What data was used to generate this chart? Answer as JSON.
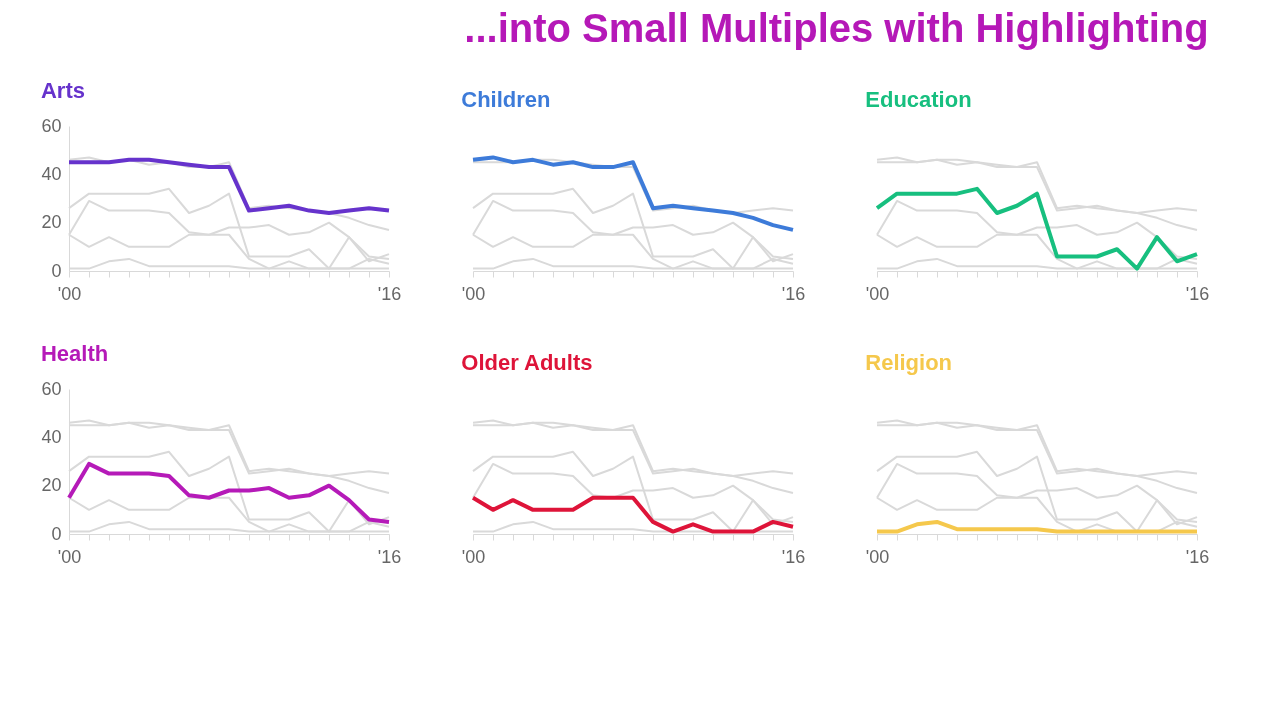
{
  "chart_data": [
    {
      "type": "line",
      "title": "Arts",
      "annotations": [
        "...into Small Multiples with Highlighting"
      ],
      "x": [
        2000,
        2001,
        2002,
        2003,
        2004,
        2005,
        2006,
        2007,
        2008,
        2009,
        2010,
        2011,
        2012,
        2013,
        2014,
        2015,
        2016
      ],
      "xlim": [
        2000,
        2016
      ],
      "xticks": [
        {
          "value": 2000,
          "label": "'00"
        },
        {
          "value": 2001,
          "label": null
        },
        {
          "value": 2002,
          "label": null
        },
        {
          "value": 2003,
          "label": null
        },
        {
          "value": 2004,
          "label": null
        },
        {
          "value": 2005,
          "label": null
        },
        {
          "value": 2006,
          "label": null
        },
        {
          "value": 2007,
          "label": null
        },
        {
          "value": 2008,
          "label": null
        },
        {
          "value": 2009,
          "label": null
        },
        {
          "value": 2010,
          "label": null
        },
        {
          "value": 2011,
          "label": null
        },
        {
          "value": 2012,
          "label": null
        },
        {
          "value": 2013,
          "label": null
        },
        {
          "value": 2014,
          "label": null
        },
        {
          "value": 2015,
          "label": null
        },
        {
          "value": 2016,
          "label": "'16"
        }
      ],
      "ylim": [
        0,
        60
      ],
      "yticks": [
        0,
        20,
        40,
        60
      ],
      "grid": false,
      "legend": false,
      "marker": "none",
      "line_style": "solid",
      "series": [
        {
          "color": "#d9d9d9",
          "values": [
            46,
            47,
            45,
            46,
            44,
            45,
            43,
            43,
            45,
            26,
            27,
            26,
            25,
            24,
            22,
            19,
            17
          ]
        },
        {
          "color": "#d9d9d9",
          "values": [
            26,
            32,
            32,
            32,
            32,
            34,
            24,
            27,
            32,
            6,
            6,
            6,
            9,
            1,
            14,
            4,
            7
          ]
        },
        {
          "color": "#d9d9d9",
          "values": [
            15,
            29,
            25,
            25,
            25,
            24,
            16,
            15,
            18,
            18,
            19,
            15,
            16,
            20,
            14,
            6,
            5
          ]
        },
        {
          "color": "#d9d9d9",
          "values": [
            15,
            10,
            14,
            10,
            10,
            10,
            15,
            15,
            15,
            5,
            1,
            4,
            1,
            1,
            1,
            5,
            3
          ]
        },
        {
          "color": "#d9d9d9",
          "values": [
            1,
            1,
            4,
            5,
            2,
            2,
            2,
            2,
            2,
            1,
            1,
            1,
            1,
            1,
            1,
            1,
            1
          ]
        },
        {
          "color": "#6633cc",
          "values": [
            45,
            45,
            45,
            46,
            46,
            45,
            44,
            43,
            43,
            25,
            26,
            27,
            25,
            24,
            25,
            26,
            25
          ]
        }
      ]
    },
    {
      "type": "line",
      "title": "Children",
      "tick_labels": "x",
      "x": [
        2000,
        2001,
        2002,
        2003,
        2004,
        2005,
        2006,
        2007,
        2008,
        2009,
        2010,
        2011,
        2012,
        2013,
        2014,
        2015,
        2016
      ],
      "xlim": [
        2000,
        2016
      ],
      "xticks": [
        {
          "value": 2000,
          "label": "'00"
        },
        {
          "value": 2001,
          "label": null
        },
        {
          "value": 2002,
          "label": null
        },
        {
          "value": 2003,
          "label": null
        },
        {
          "value": 2004,
          "label": null
        },
        {
          "value": 2005,
          "label": null
        },
        {
          "value": 2006,
          "label": null
        },
        {
          "value": 2007,
          "label": null
        },
        {
          "value": 2008,
          "label": null
        },
        {
          "value": 2009,
          "label": null
        },
        {
          "value": 2010,
          "label": null
        },
        {
          "value": 2011,
          "label": null
        },
        {
          "value": 2012,
          "label": null
        },
        {
          "value": 2013,
          "label": null
        },
        {
          "value": 2014,
          "label": null
        },
        {
          "value": 2015,
          "label": null
        },
        {
          "value": 2016,
          "label": "'16"
        }
      ],
      "ylim": [
        0,
        60
      ],
      "yticks": [
        0,
        20,
        40,
        60
      ],
      "grid": false,
      "legend": false,
      "marker": "none",
      "line_style": "solid",
      "series": [
        {
          "color": "#d9d9d9",
          "values": [
            45,
            45,
            45,
            46,
            46,
            45,
            44,
            43,
            43,
            25,
            26,
            27,
            25,
            24,
            25,
            26,
            25
          ]
        },
        {
          "color": "#d9d9d9",
          "values": [
            26,
            32,
            32,
            32,
            32,
            34,
            24,
            27,
            32,
            6,
            6,
            6,
            9,
            1,
            14,
            4,
            7
          ]
        },
        {
          "color": "#d9d9d9",
          "values": [
            15,
            29,
            25,
            25,
            25,
            24,
            16,
            15,
            18,
            18,
            19,
            15,
            16,
            20,
            14,
            6,
            5
          ]
        },
        {
          "color": "#d9d9d9",
          "values": [
            15,
            10,
            14,
            10,
            10,
            10,
            15,
            15,
            15,
            5,
            1,
            4,
            1,
            1,
            1,
            5,
            3
          ]
        },
        {
          "color": "#d9d9d9",
          "values": [
            1,
            1,
            4,
            5,
            2,
            2,
            2,
            2,
            2,
            1,
            1,
            1,
            1,
            1,
            1,
            1,
            1
          ]
        },
        {
          "color": "#3d7bd9",
          "values": [
            46,
            47,
            45,
            46,
            44,
            45,
            43,
            43,
            45,
            26,
            27,
            26,
            25,
            24,
            22,
            19,
            17
          ]
        }
      ]
    },
    {
      "type": "line",
      "title": "Education",
      "tick_labels": "x",
      "x": [
        2000,
        2001,
        2002,
        2003,
        2004,
        2005,
        2006,
        2007,
        2008,
        2009,
        2010,
        2011,
        2012,
        2013,
        2014,
        2015,
        2016
      ],
      "xlim": [
        2000,
        2016
      ],
      "xticks": [
        {
          "value": 2000,
          "label": "'00"
        },
        {
          "value": 2001,
          "label": null
        },
        {
          "value": 2002,
          "label": null
        },
        {
          "value": 2003,
          "label": null
        },
        {
          "value": 2004,
          "label": null
        },
        {
          "value": 2005,
          "label": null
        },
        {
          "value": 2006,
          "label": null
        },
        {
          "value": 2007,
          "label": null
        },
        {
          "value": 2008,
          "label": null
        },
        {
          "value": 2009,
          "label": null
        },
        {
          "value": 2010,
          "label": null
        },
        {
          "value": 2011,
          "label": null
        },
        {
          "value": 2012,
          "label": null
        },
        {
          "value": 2013,
          "label": null
        },
        {
          "value": 2014,
          "label": null
        },
        {
          "value": 2015,
          "label": null
        },
        {
          "value": 2016,
          "label": "'16"
        }
      ],
      "ylim": [
        0,
        60
      ],
      "yticks": [
        0,
        20,
        40,
        60
      ],
      "grid": false,
      "legend": false,
      "marker": "none",
      "line_style": "solid",
      "series": [
        {
          "color": "#d9d9d9",
          "values": [
            45,
            45,
            45,
            46,
            46,
            45,
            44,
            43,
            43,
            25,
            26,
            27,
            25,
            24,
            25,
            26,
            25
          ]
        },
        {
          "color": "#d9d9d9",
          "values": [
            46,
            47,
            45,
            46,
            44,
            45,
            43,
            43,
            45,
            26,
            27,
            26,
            25,
            24,
            22,
            19,
            17
          ]
        },
        {
          "color": "#d9d9d9",
          "values": [
            15,
            29,
            25,
            25,
            25,
            24,
            16,
            15,
            18,
            18,
            19,
            15,
            16,
            20,
            14,
            6,
            5
          ]
        },
        {
          "color": "#d9d9d9",
          "values": [
            15,
            10,
            14,
            10,
            10,
            10,
            15,
            15,
            15,
            5,
            1,
            4,
            1,
            1,
            1,
            5,
            3
          ]
        },
        {
          "color": "#d9d9d9",
          "values": [
            1,
            1,
            4,
            5,
            2,
            2,
            2,
            2,
            2,
            1,
            1,
            1,
            1,
            1,
            1,
            1,
            1
          ]
        },
        {
          "color": "#17bf7f",
          "values": [
            26,
            32,
            32,
            32,
            32,
            34,
            24,
            27,
            32,
            6,
            6,
            6,
            9,
            1,
            14,
            4,
            7
          ]
        }
      ]
    },
    {
      "type": "line",
      "title": "Health",
      "x": [
        2000,
        2001,
        2002,
        2003,
        2004,
        2005,
        2006,
        2007,
        2008,
        2009,
        2010,
        2011,
        2012,
        2013,
        2014,
        2015,
        2016
      ],
      "xlim": [
        2000,
        2016
      ],
      "xticks": [
        {
          "value": 2000,
          "label": "'00"
        },
        {
          "value": 2001,
          "label": null
        },
        {
          "value": 2002,
          "label": null
        },
        {
          "value": 2003,
          "label": null
        },
        {
          "value": 2004,
          "label": null
        },
        {
          "value": 2005,
          "label": null
        },
        {
          "value": 2006,
          "label": null
        },
        {
          "value": 2007,
          "label": null
        },
        {
          "value": 2008,
          "label": null
        },
        {
          "value": 2009,
          "label": null
        },
        {
          "value": 2010,
          "label": null
        },
        {
          "value": 2011,
          "label": null
        },
        {
          "value": 2012,
          "label": null
        },
        {
          "value": 2013,
          "label": null
        },
        {
          "value": 2014,
          "label": null
        },
        {
          "value": 2015,
          "label": null
        },
        {
          "value": 2016,
          "label": "'16"
        }
      ],
      "ylim": [
        0,
        60
      ],
      "yticks": [
        0,
        20,
        40,
        60
      ],
      "grid": false,
      "legend": false,
      "marker": "none",
      "line_style": "solid",
      "series": [
        {
          "color": "#d9d9d9",
          "values": [
            45,
            45,
            45,
            46,
            46,
            45,
            44,
            43,
            43,
            25,
            26,
            27,
            25,
            24,
            25,
            26,
            25
          ]
        },
        {
          "color": "#d9d9d9",
          "values": [
            46,
            47,
            45,
            46,
            44,
            45,
            43,
            43,
            45,
            26,
            27,
            26,
            25,
            24,
            22,
            19,
            17
          ]
        },
        {
          "color": "#d9d9d9",
          "values": [
            26,
            32,
            32,
            32,
            32,
            34,
            24,
            27,
            32,
            6,
            6,
            6,
            9,
            1,
            14,
            4,
            7
          ]
        },
        {
          "color": "#d9d9d9",
          "values": [
            15,
            10,
            14,
            10,
            10,
            10,
            15,
            15,
            15,
            5,
            1,
            4,
            1,
            1,
            1,
            5,
            3
          ]
        },
        {
          "color": "#d9d9d9",
          "values": [
            1,
            1,
            4,
            5,
            2,
            2,
            2,
            2,
            2,
            1,
            1,
            1,
            1,
            1,
            1,
            1,
            1
          ]
        },
        {
          "color": "#b51ab8",
          "values": [
            15,
            29,
            25,
            25,
            25,
            24,
            16,
            15,
            18,
            18,
            19,
            15,
            16,
            20,
            14,
            6,
            5
          ]
        }
      ]
    },
    {
      "type": "line",
      "title": "Older Adults",
      "tick_labels": "x",
      "x": [
        2000,
        2001,
        2002,
        2003,
        2004,
        2005,
        2006,
        2007,
        2008,
        2009,
        2010,
        2011,
        2012,
        2013,
        2014,
        2015,
        2016
      ],
      "xlim": [
        2000,
        2016
      ],
      "xticks": [
        {
          "value": 2000,
          "label": "'00"
        },
        {
          "value": 2001,
          "label": null
        },
        {
          "value": 2002,
          "label": null
        },
        {
          "value": 2003,
          "label": null
        },
        {
          "value": 2004,
          "label": null
        },
        {
          "value": 2005,
          "label": null
        },
        {
          "value": 2006,
          "label": null
        },
        {
          "value": 2007,
          "label": null
        },
        {
          "value": 2008,
          "label": null
        },
        {
          "value": 2009,
          "label": null
        },
        {
          "value": 2010,
          "label": null
        },
        {
          "value": 2011,
          "label": null
        },
        {
          "value": 2012,
          "label": null
        },
        {
          "value": 2013,
          "label": null
        },
        {
          "value": 2014,
          "label": null
        },
        {
          "value": 2015,
          "label": null
        },
        {
          "value": 2016,
          "label": "'16"
        }
      ],
      "ylim": [
        0,
        60
      ],
      "yticks": [
        0,
        20,
        40,
        60
      ],
      "grid": false,
      "legend": false,
      "marker": "none",
      "line_style": "solid",
      "series": [
        {
          "color": "#d9d9d9",
          "values": [
            45,
            45,
            45,
            46,
            46,
            45,
            44,
            43,
            43,
            25,
            26,
            27,
            25,
            24,
            25,
            26,
            25
          ]
        },
        {
          "color": "#d9d9d9",
          "values": [
            46,
            47,
            45,
            46,
            44,
            45,
            43,
            43,
            45,
            26,
            27,
            26,
            25,
            24,
            22,
            19,
            17
          ]
        },
        {
          "color": "#d9d9d9",
          "values": [
            26,
            32,
            32,
            32,
            32,
            34,
            24,
            27,
            32,
            6,
            6,
            6,
            9,
            1,
            14,
            4,
            7
          ]
        },
        {
          "color": "#d9d9d9",
          "values": [
            15,
            29,
            25,
            25,
            25,
            24,
            16,
            15,
            18,
            18,
            19,
            15,
            16,
            20,
            14,
            6,
            5
          ]
        },
        {
          "color": "#d9d9d9",
          "values": [
            1,
            1,
            4,
            5,
            2,
            2,
            2,
            2,
            2,
            1,
            1,
            1,
            1,
            1,
            1,
            1,
            1
          ]
        },
        {
          "color": "#de1439",
          "values": [
            15,
            10,
            14,
            10,
            10,
            10,
            15,
            15,
            15,
            5,
            1,
            4,
            1,
            1,
            1,
            5,
            3
          ]
        }
      ]
    },
    {
      "type": "line",
      "title": "Religion",
      "tick_labels": "x",
      "x": [
        2000,
        2001,
        2002,
        2003,
        2004,
        2005,
        2006,
        2007,
        2008,
        2009,
        2010,
        2011,
        2012,
        2013,
        2014,
        2015,
        2016
      ],
      "xlim": [
        2000,
        2016
      ],
      "xticks": [
        {
          "value": 2000,
          "label": "'00"
        },
        {
          "value": 2001,
          "label": null
        },
        {
          "value": 2002,
          "label": null
        },
        {
          "value": 2003,
          "label": null
        },
        {
          "value": 2004,
          "label": null
        },
        {
          "value": 2005,
          "label": null
        },
        {
          "value": 2006,
          "label": null
        },
        {
          "value": 2007,
          "label": null
        },
        {
          "value": 2008,
          "label": null
        },
        {
          "value": 2009,
          "label": null
        },
        {
          "value": 2010,
          "label": null
        },
        {
          "value": 2011,
          "label": null
        },
        {
          "value": 2012,
          "label": null
        },
        {
          "value": 2013,
          "label": null
        },
        {
          "value": 2014,
          "label": null
        },
        {
          "value": 2015,
          "label": null
        },
        {
          "value": 2016,
          "label": "'16"
        }
      ],
      "ylim": [
        0,
        60
      ],
      "yticks": [
        0,
        20,
        40,
        60
      ],
      "grid": false,
      "legend": false,
      "marker": "none",
      "line_style": "solid",
      "series": [
        {
          "color": "#d9d9d9",
          "values": [
            45,
            45,
            45,
            46,
            46,
            45,
            44,
            43,
            43,
            25,
            26,
            27,
            25,
            24,
            25,
            26,
            25
          ]
        },
        {
          "color": "#d9d9d9",
          "values": [
            46,
            47,
            45,
            46,
            44,
            45,
            43,
            43,
            45,
            26,
            27,
            26,
            25,
            24,
            22,
            19,
            17
          ]
        },
        {
          "color": "#d9d9d9",
          "values": [
            26,
            32,
            32,
            32,
            32,
            34,
            24,
            27,
            32,
            6,
            6,
            6,
            9,
            1,
            14,
            4,
            7
          ]
        },
        {
          "color": "#d9d9d9",
          "values": [
            15,
            29,
            25,
            25,
            25,
            24,
            16,
            15,
            18,
            18,
            19,
            15,
            16,
            20,
            14,
            6,
            5
          ]
        },
        {
          "color": "#d9d9d9",
          "values": [
            15,
            10,
            14,
            10,
            10,
            10,
            15,
            15,
            15,
            5,
            1,
            4,
            1,
            1,
            1,
            5,
            3
          ]
        },
        {
          "color": "#f5c84c",
          "values": [
            1,
            1,
            4,
            5,
            2,
            2,
            2,
            2,
            2,
            1,
            1,
            1,
            1,
            1,
            1,
            1,
            1
          ]
        }
      ]
    }
  ]
}
